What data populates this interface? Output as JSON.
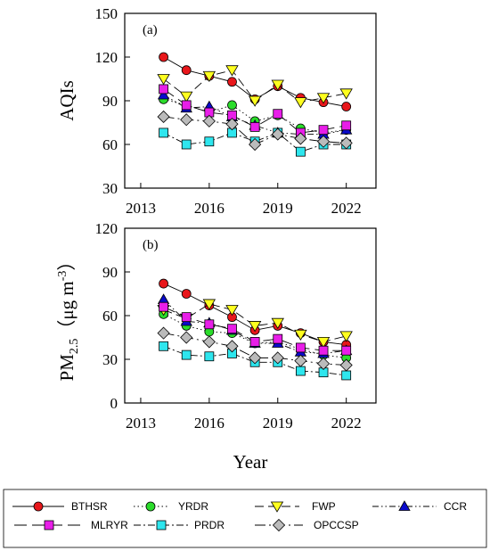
{
  "chart_data": [
    {
      "type": "line",
      "panel_label": "(a)",
      "ylabel": "AQIs",
      "xlabel": "",
      "x": [
        2014,
        2015,
        2016,
        2017,
        2018,
        2019,
        2020,
        2021,
        2022
      ],
      "xlim": [
        2012.3,
        2023.3
      ],
      "ylim": [
        30,
        150
      ],
      "xticks": [
        2013,
        2016,
        2019,
        2022
      ],
      "yticks": [
        30,
        60,
        90,
        120,
        150
      ],
      "series": [
        {
          "name": "BTHSR",
          "values": [
            120,
            111,
            107,
            103,
            91,
            100,
            92,
            89,
            86
          ]
        },
        {
          "name": "YRDR",
          "values": [
            91,
            87,
            82,
            87,
            76,
            80,
            71,
            68,
            70
          ]
        },
        {
          "name": "FWP",
          "values": [
            105,
            93,
            107,
            111,
            90,
            101,
            89,
            92,
            95
          ]
        },
        {
          "name": "CCR",
          "values": [
            94,
            85,
            86,
            79,
            73,
            68,
            67,
            67,
            70
          ]
        },
        {
          "name": "MLRYR",
          "values": [
            98,
            87,
            82,
            80,
            72,
            81,
            68,
            70,
            73
          ]
        },
        {
          "name": "PRDR",
          "values": [
            68,
            60,
            62,
            68,
            62,
            68,
            55,
            60,
            60
          ]
        },
        {
          "name": "OPCCSP",
          "values": [
            79,
            77,
            76,
            74,
            60,
            67,
            64,
            62,
            61
          ]
        }
      ]
    },
    {
      "type": "line",
      "panel_label": "(b)",
      "ylabel_main": "PM",
      "ylabel_sub": "2.5",
      "ylabel_unit": "（μg m",
      "ylabel_sup": "-3",
      "ylabel_close": "）",
      "xlabel": "Year",
      "x": [
        2014,
        2015,
        2016,
        2017,
        2018,
        2019,
        2020,
        2021,
        2022
      ],
      "xlim": [
        2012.3,
        2023.3
      ],
      "ylim": [
        0,
        120
      ],
      "xticks": [
        2013,
        2016,
        2019,
        2022
      ],
      "yticks": [
        0,
        30,
        60,
        90,
        120
      ],
      "series": [
        {
          "name": "BTHSR",
          "values": [
            82,
            75,
            67,
            59,
            50,
            53,
            48,
            42,
            40
          ]
        },
        {
          "name": "YRDR",
          "values": [
            61,
            53,
            49,
            48,
            41,
            42,
            37,
            33,
            31
          ]
        },
        {
          "name": "FWP",
          "values": [
            64,
            58,
            68,
            64,
            53,
            55,
            47,
            42,
            46
          ]
        },
        {
          "name": "CCR",
          "values": [
            71,
            56,
            55,
            50,
            41,
            41,
            35,
            34,
            36
          ]
        },
        {
          "name": "MLRYR",
          "values": [
            66,
            59,
            54,
            51,
            42,
            44,
            38,
            36,
            36
          ]
        },
        {
          "name": "PRDR",
          "values": [
            39,
            33,
            32,
            34,
            28,
            28,
            22,
            21,
            19
          ]
        },
        {
          "name": "OPCCSP",
          "values": [
            48,
            45,
            42,
            39,
            31,
            31,
            29,
            27,
            26
          ]
        }
      ]
    }
  ],
  "legend": {
    "placement": "bottom",
    "entries": [
      {
        "name": "BTHSR",
        "color": "#e8171b",
        "marker": "circle",
        "dash": "none"
      },
      {
        "name": "YRDR",
        "color": "#2bdc2b",
        "marker": "circle",
        "dash": "1.5,3"
      },
      {
        "name": "FWP",
        "color": "#ffff1f",
        "marker": "triangle-down",
        "dash": "10,5"
      },
      {
        "name": "CCR",
        "color": "#0a0acc",
        "marker": "triangle-up",
        "dash": "7,3,1.5,3,1.5,3"
      },
      {
        "name": "MLRYR",
        "color": "#e81ee8",
        "marker": "square",
        "dash": "14,6"
      },
      {
        "name": "PRDR",
        "color": "#2ee6ee",
        "marker": "square",
        "dash": "8,3,2,3"
      },
      {
        "name": "OPCCSP",
        "color": "#bbbbbb",
        "marker": "diamond",
        "dash": "12,4,2,4"
      }
    ]
  }
}
